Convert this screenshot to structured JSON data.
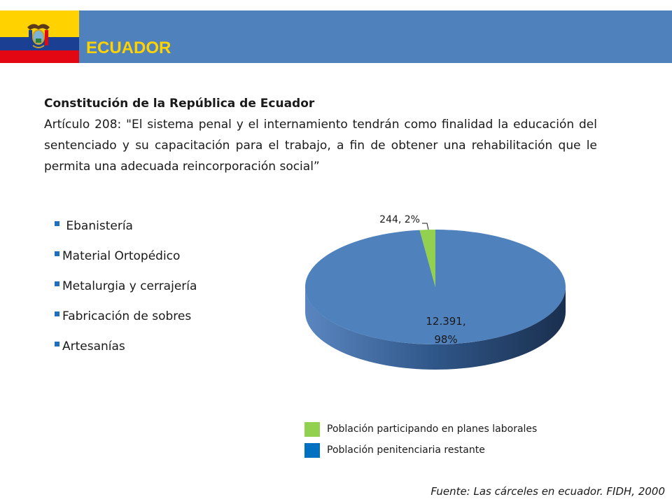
{
  "header": {
    "title": "ECUADOR",
    "flag_colors": {
      "yellow": "#ffd200",
      "blue": "#1b3f93",
      "red": "#e30613"
    },
    "bar_color": "#4f81bd",
    "emblem_icon": "coat-of-arms-icon"
  },
  "constitution": {
    "heading": "Constitución de la República de Ecuador",
    "article": " Artículo 208: \"El sistema penal y el internamiento tendrán como finalidad la educación del sentenciado y su capacitación para el trabajo, a fin de obtener una rehabilitación que le permita una adecuada reincorporación social”"
  },
  "trades": {
    "bullet_icon": "square-bullet-icon",
    "items": [
      " Ebanistería",
      "Material Ortopédico",
      "Metalurgia y cerrajería",
      "Fabricación de sobres",
      "Artesanías"
    ]
  },
  "chart_data": {
    "type": "pie",
    "style": "3d",
    "slices": [
      {
        "label": "Población participando en planes laborales",
        "value": 244,
        "percent": 2,
        "data_label": "244, 2%",
        "color": "#92d050"
      },
      {
        "label": "Población penitenciaria restante",
        "value": 12391,
        "percent": 98,
        "data_label": "12.391, 98%",
        "data_label_lines": [
          "12.391,",
          "98%"
        ],
        "color": "#4f81bd"
      }
    ],
    "legend_placement": "bottom",
    "legend": [
      {
        "label": "Población participando en planes laborales",
        "color": "#92d050"
      },
      {
        "label": "Población penitenciaria restante",
        "color": "#0070c0"
      }
    ]
  },
  "source": "Fuente: Las cárceles en ecuador. FIDH, 2000"
}
